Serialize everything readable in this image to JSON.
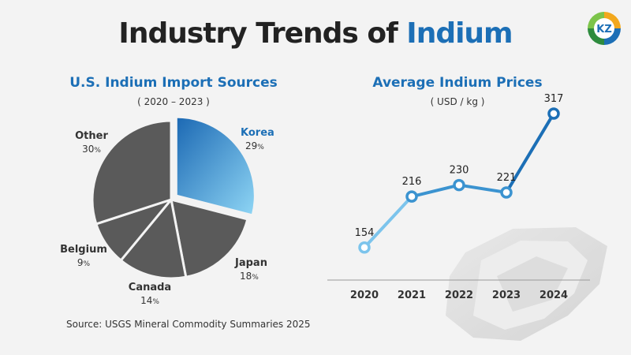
{
  "header": {
    "title_main": "Industry Trends of ",
    "title_accent": "Indium",
    "logo_text": "KZ"
  },
  "colors": {
    "accent": "#1c6fb6",
    "dark_slice": "#5a5a5a",
    "line_light": "#7cc4ec",
    "line_mid": "#3b93d0",
    "line_dark": "#1c6fb6"
  },
  "source": "Source: USGS Mineral Commodity Summaries 2025",
  "chart_data": [
    {
      "type": "pie",
      "title": "U.S. Indium Import Sources",
      "subtitle": "( 2020 – 2023 )",
      "unit_symbol": "%",
      "slices": [
        {
          "label": "Korea",
          "value": 29,
          "highlight": true
        },
        {
          "label": "Japan",
          "value": 18
        },
        {
          "label": "Canada",
          "value": 14
        },
        {
          "label": "Belgium",
          "value": 9
        },
        {
          "label": "Other",
          "value": 30
        }
      ]
    },
    {
      "type": "line",
      "title": "Average Indium Prices",
      "subtitle": "( USD / kg )",
      "x": [
        "2020",
        "2021",
        "2022",
        "2023",
        "2024"
      ],
      "values": [
        154,
        216,
        230,
        221,
        317
      ],
      "ylim": [
        100,
        340
      ],
      "grid": false,
      "legend": "none"
    }
  ]
}
